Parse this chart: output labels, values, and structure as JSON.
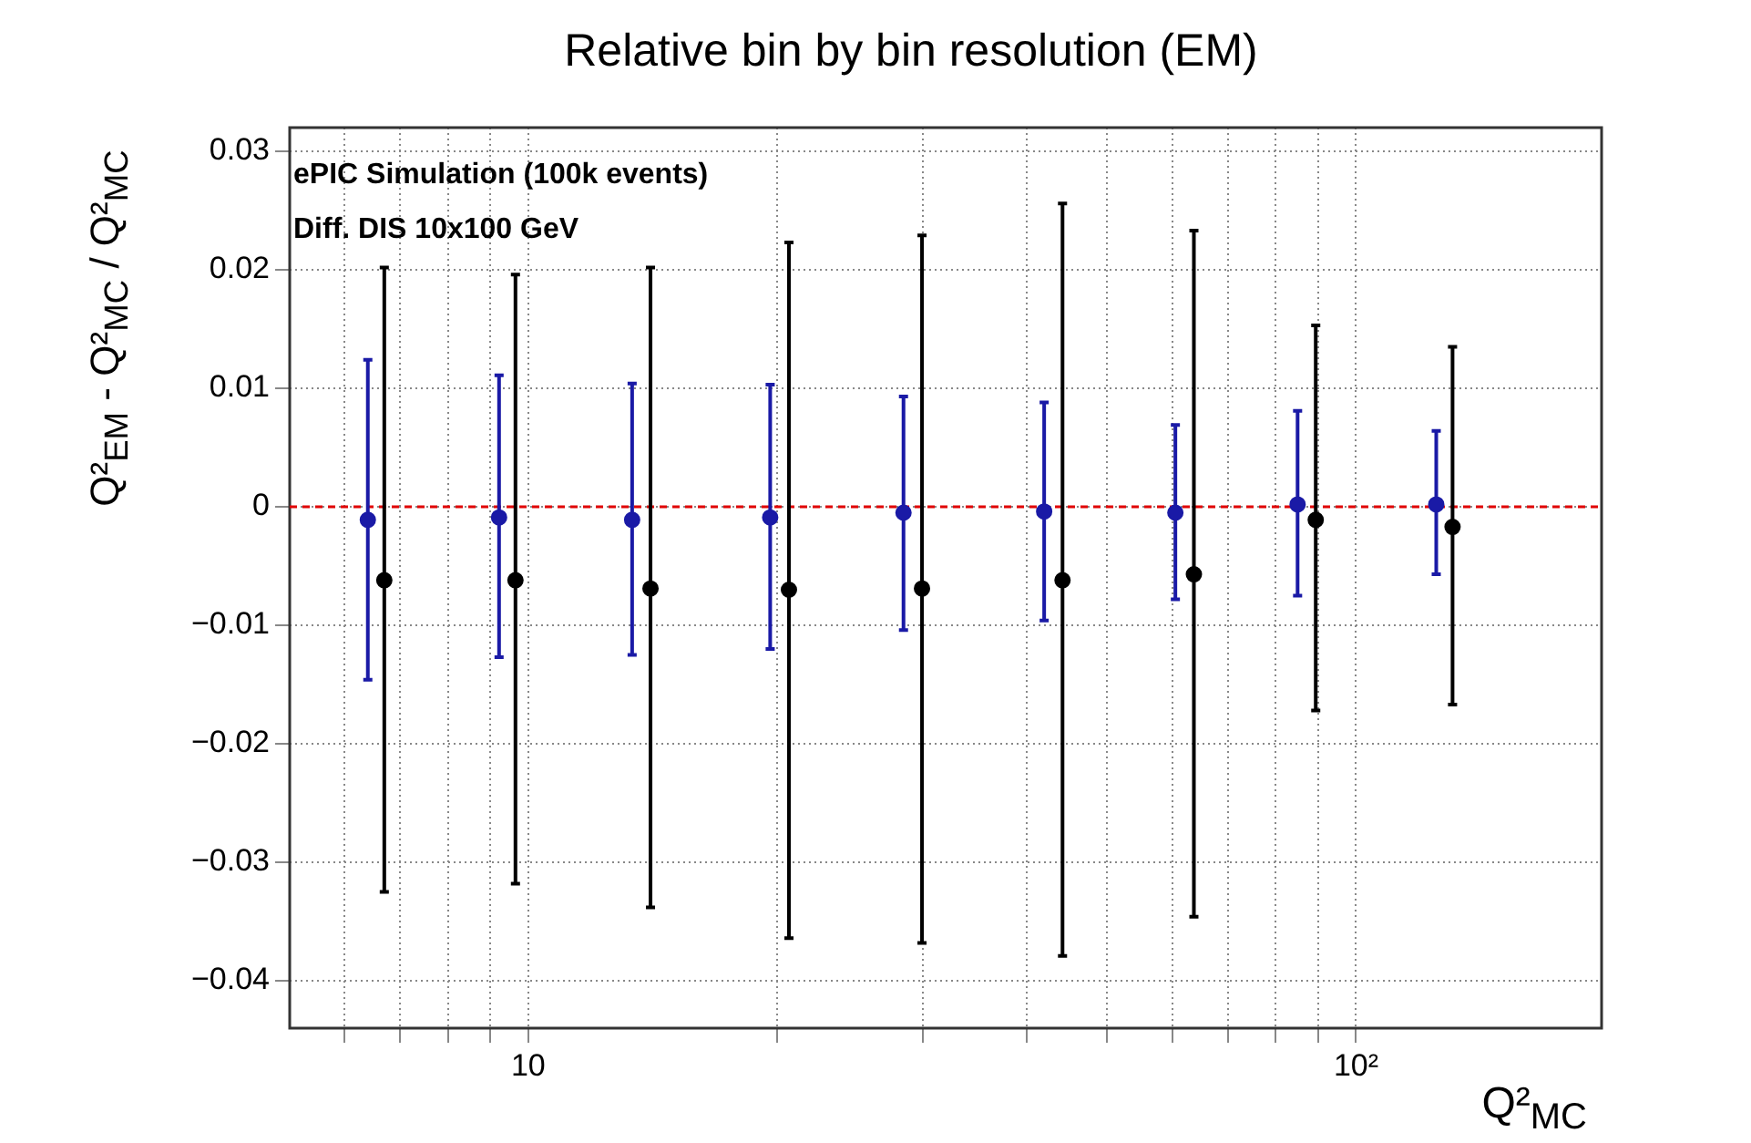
{
  "chart_data": {
    "type": "scatter",
    "title": "Relative bin by bin resolution (EM)",
    "xlabel": "Q²$_{MC}$",
    "ylabel": "Q²$_{EM}$ - Q²$_{MC}$ / Q²$_{MC}$",
    "annotations": [
      "ePIC Simulation (100k events)",
      "Diff. DIS 10x100 GeV"
    ],
    "log": "x",
    "grid": true,
    "marker": "circle",
    "xlim": [
      5.15,
      198
    ],
    "ylim": [
      -0.044,
      0.032
    ],
    "xticks": [
      {
        "value": 6,
        "label": null
      },
      {
        "value": 7,
        "label": null
      },
      {
        "value": 8,
        "label": null
      },
      {
        "value": 9,
        "label": null
      },
      10,
      {
        "value": 20,
        "label": null
      },
      {
        "value": 30,
        "label": null
      },
      {
        "value": 40,
        "label": null
      },
      {
        "value": 50,
        "label": null
      },
      {
        "value": 60,
        "label": null
      },
      {
        "value": 70,
        "label": null
      },
      {
        "value": 80,
        "label": null
      },
      {
        "value": 90,
        "label": null
      },
      {
        "value": 100,
        "label": "10²"
      }
    ],
    "yticks": [
      {
        "value": -0.04,
        "label": "−0.04"
      },
      {
        "value": -0.03,
        "label": "−0.03"
      },
      {
        "value": -0.02,
        "label": "−0.02"
      },
      {
        "value": -0.01,
        "label": "−0.01"
      },
      0,
      0.01,
      0.02,
      0.03
    ],
    "ref_lines": [
      {
        "axis": "y",
        "value": 0,
        "color": "#e00000",
        "line_style": "dashed"
      }
    ],
    "series": [
      {
        "color": "#1a1aa6",
        "x": [
          6.4,
          9.22,
          13.35,
          19.6,
          28.4,
          42.0,
          60.5,
          85.0,
          125
        ],
        "values": [
          -0.0011,
          -0.0009,
          -0.0011,
          -0.0009,
          -0.0005,
          -0.0004,
          -0.0005,
          0.0002,
          0.0002
        ],
        "errors": [
          [
            -0.0146,
            0.0124
          ],
          [
            -0.0127,
            0.0111
          ],
          [
            -0.0125,
            0.0104
          ],
          [
            -0.012,
            0.0103
          ],
          [
            -0.0104,
            0.0093
          ],
          [
            -0.0096,
            0.0088
          ],
          [
            -0.0078,
            0.0069
          ],
          [
            -0.0075,
            0.0081
          ],
          [
            -0.0057,
            0.0064
          ]
        ]
      },
      {
        "color": "#000000",
        "x": [
          6.7,
          9.65,
          14.05,
          20.65,
          29.9,
          44.2,
          63.7,
          89.4,
          130.8
        ],
        "values": [
          -0.0062,
          -0.0062,
          -0.0069,
          -0.007,
          -0.0069,
          -0.0062,
          -0.0057,
          -0.0011,
          -0.0017
        ],
        "errors": [
          [
            -0.0325,
            0.0202
          ],
          [
            -0.0318,
            0.0196
          ],
          [
            -0.0338,
            0.0202
          ],
          [
            -0.0364,
            0.0223
          ],
          [
            -0.0368,
            0.0229
          ],
          [
            -0.0379,
            0.0256
          ],
          [
            -0.0346,
            0.0233
          ],
          [
            -0.0172,
            0.0153
          ],
          [
            -0.0167,
            0.0135
          ]
        ]
      }
    ]
  }
}
